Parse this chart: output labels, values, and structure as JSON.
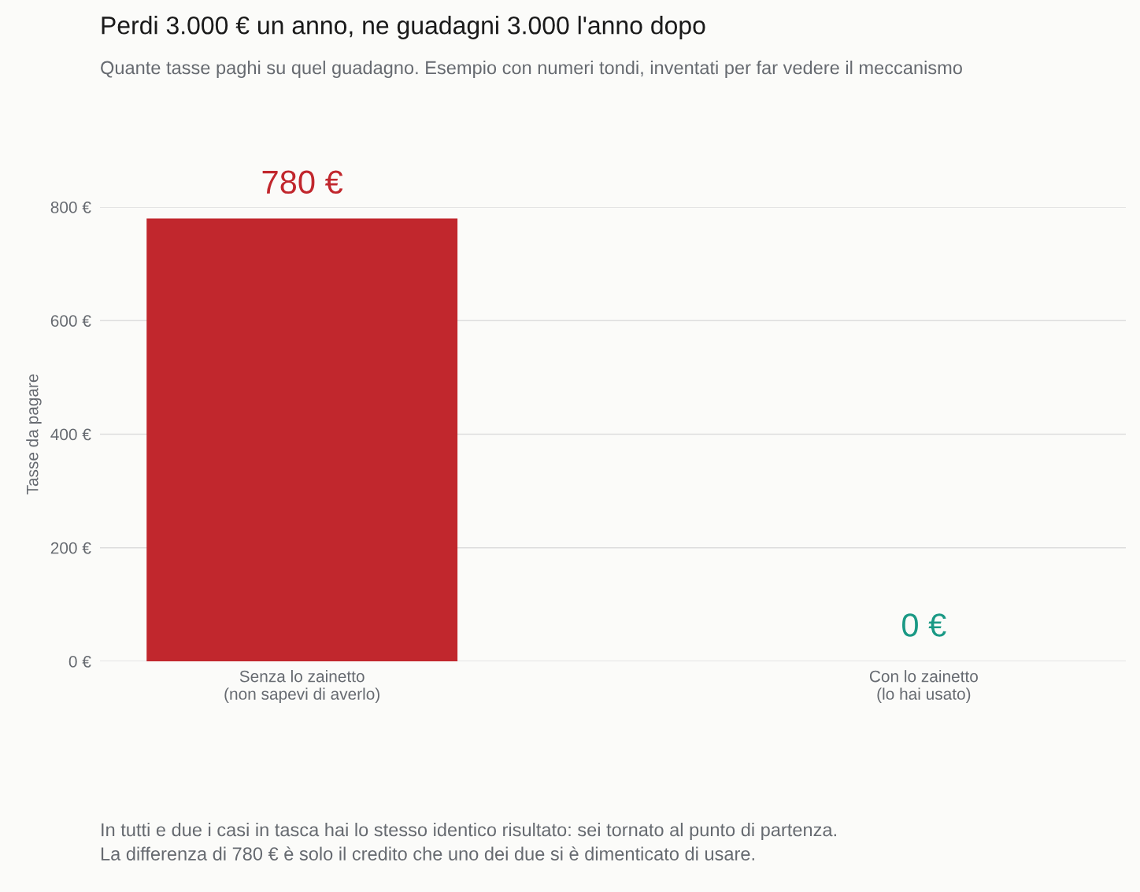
{
  "chart_data": {
    "type": "bar",
    "title": "Perdi 3.000 € un anno, ne guadagni 3.000 l'anno dopo",
    "subtitle": "Quante tasse paghi su quel guadagno. Esempio con numeri tondi, inventati per far vedere il meccanismo",
    "ylabel": "Tasse da pagare",
    "categories": [
      "Senza lo zainetto\n(non sapevi di averlo)",
      "Con lo zainetto\n(lo hai usato)"
    ],
    "values": [
      780,
      0
    ],
    "colors": [
      "#c1272d",
      "#1a9985"
    ],
    "value_labels": [
      "780 €",
      "0 €"
    ],
    "ylim": [
      0,
      800
    ],
    "yticks": [
      {
        "value": 0,
        "label": "0 €"
      },
      {
        "value": 200,
        "label": "200 €"
      },
      {
        "value": 400,
        "label": "400 €"
      },
      {
        "value": 600,
        "label": "600 €"
      },
      {
        "value": 800,
        "label": "800 €"
      }
    ],
    "grid": "y",
    "annotations": [
      "In tutti e due i casi in tasca hai lo stesso identico risultato: sei tornato al punto di partenza.\nLa differenza di 780 € è solo il credito che uno dei due si è dimenticato di usare."
    ]
  }
}
